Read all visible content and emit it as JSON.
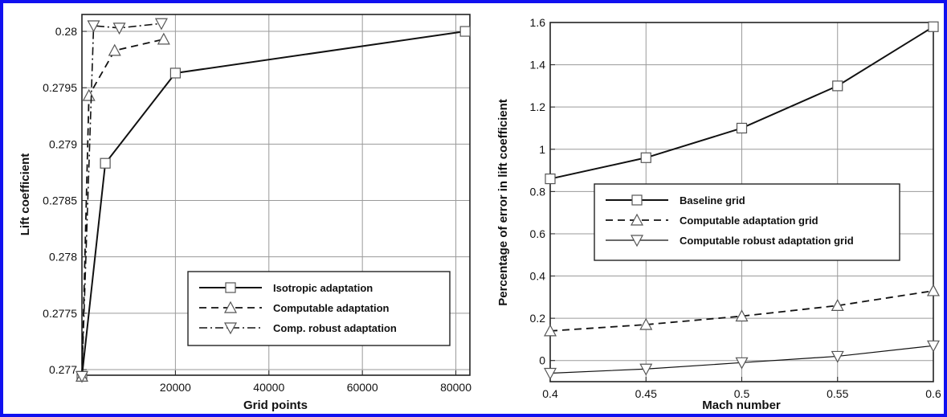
{
  "border_color": "#1010f0",
  "chart_data": [
    {
      "type": "line",
      "xlabel": "Grid points",
      "ylabel": "Lift coefficient",
      "xlim": [
        0,
        83000
      ],
      "ylim": [
        0.27695,
        0.28015
      ],
      "x_ticks": [
        20000,
        40000,
        60000,
        80000
      ],
      "x_tick_labels": [
        "20000",
        "40000",
        "60000",
        "80000"
      ],
      "y_ticks": [
        0.277,
        0.2775,
        0.278,
        0.2785,
        0.279,
        0.2795,
        0.28
      ],
      "y_tick_labels": [
        "0.277",
        "0.2775",
        "0.278",
        "0.2785",
        "0.279",
        "0.2795",
        "0.28"
      ],
      "grid": true,
      "legend_position": "lower-right",
      "series": [
        {
          "name": "Isotropic adaptation",
          "marker": "square",
          "dash": "solid",
          "x": [
            0,
            5000,
            20000,
            82000
          ],
          "y": [
            0.27694,
            0.27883,
            0.27963,
            0.28
          ]
        },
        {
          "name": "Computable adaptation",
          "marker": "triangle-up",
          "dash": "dashed",
          "x": [
            0,
            1500,
            7000,
            17500
          ],
          "y": [
            0.27694,
            0.27943,
            0.27983,
            0.27993
          ]
        },
        {
          "name": "Comp. robust adaptation",
          "marker": "triangle-down",
          "dash": "dashdot",
          "x": [
            0,
            2500,
            8000,
            17000
          ],
          "y": [
            0.27694,
            0.28005,
            0.28003,
            0.28007
          ]
        }
      ]
    },
    {
      "type": "line",
      "xlabel": "Mach number",
      "ylabel": "Percentage of error in lift coefficient",
      "xlim": [
        0.4,
        0.6
      ],
      "ylim": [
        -0.1,
        1.6
      ],
      "x_ticks": [
        0.4,
        0.45,
        0.5,
        0.55,
        0.6
      ],
      "x_tick_labels": [
        "0.4",
        "0.45",
        "0.5",
        "0.55",
        "0.6"
      ],
      "y_ticks": [
        0,
        0.2,
        0.4,
        0.6,
        0.8,
        1,
        1.2,
        1.4,
        1.6
      ],
      "y_tick_labels": [
        "0",
        "0.2",
        "0.4",
        "0.6",
        "0.8",
        "1",
        "1.2",
        "1.4",
        "1.6"
      ],
      "grid": true,
      "legend_position": "middle-left",
      "series": [
        {
          "name": "Baseline grid",
          "marker": "square",
          "dash": "solid",
          "x": [
            0.4,
            0.45,
            0.5,
            0.55,
            0.6
          ],
          "y": [
            0.86,
            0.96,
            1.1,
            1.3,
            1.58
          ]
        },
        {
          "name": "Computable adaptation grid",
          "marker": "triangle-up",
          "dash": "dashed",
          "x": [
            0.4,
            0.45,
            0.5,
            0.55,
            0.6
          ],
          "y": [
            0.14,
            0.17,
            0.21,
            0.26,
            0.33
          ]
        },
        {
          "name": "Computable robust adaptation grid",
          "marker": "triangle-down",
          "dash": "solid-thin",
          "x": [
            0.4,
            0.45,
            0.5,
            0.55,
            0.6
          ],
          "y": [
            -0.06,
            -0.04,
            -0.01,
            0.02,
            0.07
          ]
        }
      ]
    }
  ]
}
